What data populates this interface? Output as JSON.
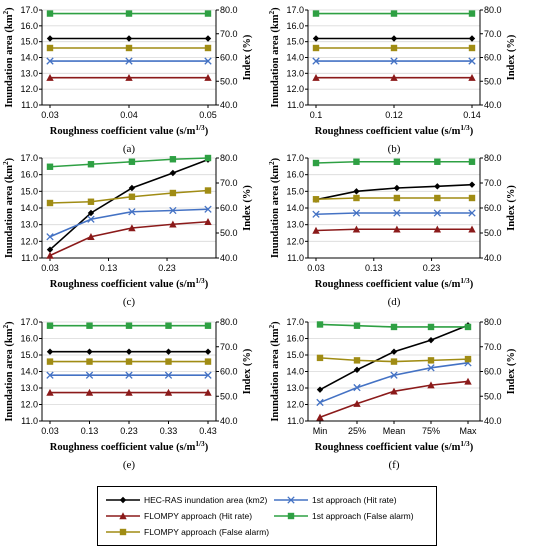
{
  "legend": [
    {
      "label": "HEC-RAS inundation area (km2)",
      "color": "#000000",
      "marker": "diamond"
    },
    {
      "label": "1st approach (Hit rate)",
      "color": "#4472C4",
      "marker": "x"
    },
    {
      "label": "FLOMPY approach (Hit rate)",
      "color": "#8B1A1A",
      "marker": "triangle"
    },
    {
      "label": "1st approach (False alarm)",
      "color": "#2EA043",
      "marker": "square"
    },
    {
      "label": "FLOMPY approach (False alarm)",
      "color": "#A08C14",
      "marker": "square"
    }
  ],
  "chart_data": [
    {
      "panel": "(a)",
      "type": "line",
      "x": [
        0.03,
        0.04,
        0.05
      ],
      "xticks": [
        "0.03",
        "0.04",
        "0.05"
      ],
      "xlabel": "Roughness coefficient value (s/m1/3)",
      "ylabel": "Inundation area (km2)",
      "ylim": [
        11.0,
        17.0
      ],
      "yticks": [
        "11.0",
        "12.0",
        "13.0",
        "14.0",
        "15.0",
        "16.0",
        "17.0"
      ],
      "y2label": "Index (%)",
      "y2lim": [
        40.0,
        80.0
      ],
      "y2ticks": [
        "40.0",
        "50.0",
        "60.0",
        "70.0",
        "80.0"
      ],
      "series": [
        {
          "name": "HEC-RAS inundation area (km2)",
          "axis": "left",
          "values": [
            15.2,
            15.2,
            15.2
          ]
        },
        {
          "name": "1st approach (Hit rate)",
          "axis": "right",
          "values": [
            58.5,
            58.5,
            58.5
          ]
        },
        {
          "name": "FLOMPY approach (Hit rate)",
          "axis": "right",
          "values": [
            51.5,
            51.5,
            51.5
          ]
        },
        {
          "name": "1st approach (False alarm)",
          "axis": "right",
          "values": [
            78.5,
            78.5,
            78.5
          ]
        },
        {
          "name": "FLOMPY approach (False alarm)",
          "axis": "right",
          "values": [
            64.0,
            64.0,
            64.0
          ]
        }
      ]
    },
    {
      "panel": "(b)",
      "type": "line",
      "x": [
        0.1,
        0.12,
        0.14
      ],
      "xticks": [
        "0.1",
        "0.12",
        "0.14"
      ],
      "xlabel": "Roughness coefficient value (s/m1/3)",
      "ylabel": "Inundation area (km2)",
      "ylim": [
        11.0,
        17.0
      ],
      "yticks": [
        "11.0",
        "12.0",
        "13.0",
        "14.0",
        "15.0",
        "16.0",
        "17.0"
      ],
      "y2label": "Index (%)",
      "y2lim": [
        40.0,
        80.0
      ],
      "y2ticks": [
        "40.0",
        "50.0",
        "60.0",
        "70.0",
        "80.0"
      ],
      "series": [
        {
          "name": "HEC-RAS inundation area (km2)",
          "axis": "left",
          "values": [
            15.2,
            15.2,
            15.2
          ]
        },
        {
          "name": "1st approach (Hit rate)",
          "axis": "right",
          "values": [
            58.5,
            58.5,
            58.5
          ]
        },
        {
          "name": "FLOMPY approach (Hit rate)",
          "axis": "right",
          "values": [
            51.5,
            51.5,
            51.5
          ]
        },
        {
          "name": "1st approach (False alarm)",
          "axis": "right",
          "values": [
            78.5,
            78.5,
            78.5
          ]
        },
        {
          "name": "FLOMPY approach (False alarm)",
          "axis": "right",
          "values": [
            64.0,
            64.0,
            64.0
          ]
        }
      ]
    },
    {
      "panel": "(c)",
      "type": "line",
      "x": [
        0.03,
        0.1,
        0.17,
        0.24,
        0.3
      ],
      "xticks": [
        "0.03",
        "0.13",
        "0.23"
      ],
      "xlabel": "Roughness coefficient value (s/m1/3)",
      "ylabel": "Inundation area (km2)",
      "ylim": [
        11.0,
        17.0
      ],
      "yticks": [
        "11.0",
        "12.0",
        "13.0",
        "14.0",
        "15.0",
        "16.0",
        "17.0"
      ],
      "y2label": "Index (%)",
      "y2lim": [
        40.0,
        80.0
      ],
      "y2ticks": [
        "40.0",
        "50.0",
        "60.0",
        "70.0",
        "80.0"
      ],
      "series": [
        {
          "name": "HEC-RAS inundation area (km2)",
          "axis": "left",
          "values": [
            11.5,
            13.7,
            15.2,
            16.1,
            16.9
          ]
        },
        {
          "name": "1st approach (Hit rate)",
          "axis": "right",
          "values": [
            48.5,
            55.5,
            58.5,
            59.0,
            59.5
          ]
        },
        {
          "name": "FLOMPY approach (Hit rate)",
          "axis": "right",
          "values": [
            41.0,
            48.5,
            52.0,
            53.5,
            54.5
          ]
        },
        {
          "name": "1st approach (False alarm)",
          "axis": "right",
          "values": [
            76.5,
            77.5,
            78.5,
            79.5,
            80.0
          ]
        },
        {
          "name": "FLOMPY approach (False alarm)",
          "axis": "right",
          "values": [
            62.0,
            62.5,
            64.5,
            66.0,
            67.0
          ]
        }
      ]
    },
    {
      "panel": "(d)",
      "type": "line",
      "x": [
        0.03,
        0.1,
        0.17,
        0.24,
        0.3
      ],
      "xticks": [
        "0.03",
        "0.13",
        "0.23"
      ],
      "xlabel": "Roughness coefficient value (s/m1/3)",
      "ylabel": "Inundation area (km2)",
      "ylim": [
        11.0,
        17.0
      ],
      "yticks": [
        "11.0",
        "12.0",
        "13.0",
        "14.0",
        "15.0",
        "16.0",
        "17.0"
      ],
      "y2label": "Index (%)",
      "y2lim": [
        40.0,
        80.0
      ],
      "y2ticks": [
        "40.0",
        "50.0",
        "60.0",
        "70.0",
        "80.0"
      ],
      "series": [
        {
          "name": "HEC-RAS inundation area (km2)",
          "axis": "left",
          "values": [
            14.5,
            15.0,
            15.2,
            15.3,
            15.4
          ]
        },
        {
          "name": "1st approach (Hit rate)",
          "axis": "right",
          "values": [
            57.5,
            58.0,
            58.0,
            58.0,
            58.0
          ]
        },
        {
          "name": "FLOMPY approach (Hit rate)",
          "axis": "right",
          "values": [
            51.0,
            51.5,
            51.5,
            51.5,
            51.5
          ]
        },
        {
          "name": "1st approach (False alarm)",
          "axis": "right",
          "values": [
            78.0,
            78.5,
            78.5,
            78.5,
            78.5
          ]
        },
        {
          "name": "FLOMPY approach (False alarm)",
          "axis": "right",
          "values": [
            63.5,
            64.0,
            64.0,
            64.0,
            64.0
          ]
        }
      ]
    },
    {
      "panel": "(e)",
      "type": "line",
      "x": [
        0.03,
        0.13,
        0.23,
        0.33,
        0.43
      ],
      "xticks": [
        "0.03",
        "0.13",
        "0.23",
        "0.33",
        "0.43"
      ],
      "xlabel": "Roughness coefficient value (s/m1/3)",
      "ylabel": "Inundation area (km2)",
      "ylim": [
        11.0,
        17.0
      ],
      "yticks": [
        "11.0",
        "12.0",
        "13.0",
        "14.0",
        "15.0",
        "16.0",
        "17.0"
      ],
      "y2label": "Index (%)",
      "y2lim": [
        40.0,
        80.0
      ],
      "y2ticks": [
        "40.0",
        "50.0",
        "60.0",
        "70.0",
        "80.0"
      ],
      "series": [
        {
          "name": "HEC-RAS inundation area (km2)",
          "axis": "left",
          "values": [
            15.2,
            15.2,
            15.2,
            15.2,
            15.2
          ]
        },
        {
          "name": "1st approach (Hit rate)",
          "axis": "right",
          "values": [
            58.5,
            58.5,
            58.5,
            58.5,
            58.5
          ]
        },
        {
          "name": "FLOMPY approach (Hit rate)",
          "axis": "right",
          "values": [
            51.5,
            51.5,
            51.5,
            51.5,
            51.5
          ]
        },
        {
          "name": "1st approach (False alarm)",
          "axis": "right",
          "values": [
            78.5,
            78.5,
            78.5,
            78.5,
            78.5
          ]
        },
        {
          "name": "FLOMPY approach (False alarm)",
          "axis": "right",
          "values": [
            64.0,
            64.0,
            64.0,
            64.0,
            64.0
          ]
        }
      ]
    },
    {
      "panel": "(f)",
      "type": "line",
      "x": [
        "Min",
        "25%",
        "Mean",
        "75%",
        "Max"
      ],
      "xticks": [
        "Min",
        "25%",
        "Mean",
        "75%",
        "Max"
      ],
      "xlabel": "Roughness coefficient value (s/m1/3)",
      "ylabel": "Inundation area (km2)",
      "ylim": [
        11.0,
        17.0
      ],
      "yticks": [
        "11.0",
        "12.0",
        "13.0",
        "14.0",
        "15.0",
        "16.0",
        "17.0"
      ],
      "y2label": "Index (%)",
      "y2lim": [
        40.0,
        80.0
      ],
      "y2ticks": [
        "40.0",
        "50.0",
        "60.0",
        "70.0",
        "80.0"
      ],
      "series": [
        {
          "name": "HEC-RAS inundation area (km2)",
          "axis": "left",
          "values": [
            12.9,
            14.1,
            15.2,
            15.9,
            16.8
          ]
        },
        {
          "name": "1st approach (Hit rate)",
          "axis": "right",
          "values": [
            47.5,
            53.5,
            58.5,
            61.5,
            63.5
          ]
        },
        {
          "name": "FLOMPY approach (Hit rate)",
          "axis": "right",
          "values": [
            41.5,
            47.0,
            52.0,
            54.5,
            56.0
          ]
        },
        {
          "name": "1st approach (False alarm)",
          "axis": "right",
          "values": [
            79.0,
            78.5,
            78.0,
            78.0,
            78.0
          ]
        },
        {
          "name": "FLOMPY approach (False alarm)",
          "axis": "right",
          "values": [
            65.5,
            64.5,
            64.0,
            64.5,
            65.0
          ]
        }
      ]
    }
  ]
}
